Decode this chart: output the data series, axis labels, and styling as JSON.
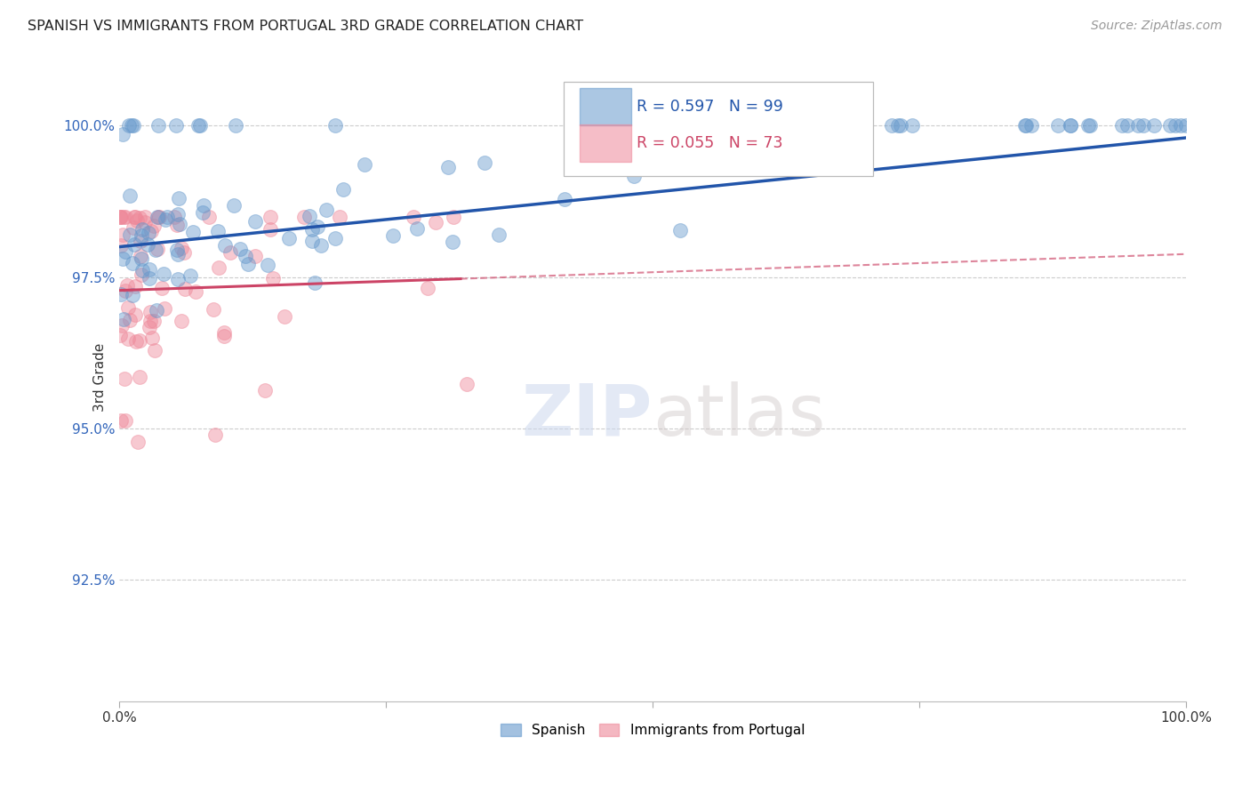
{
  "title": "SPANISH VS IMMIGRANTS FROM PORTUGAL 3RD GRADE CORRELATION CHART",
  "source": "Source: ZipAtlas.com",
  "ylabel": "3rd Grade",
  "ytick_labels": [
    "92.5%",
    "95.0%",
    "97.5%",
    "100.0%"
  ],
  "ytick_values": [
    92.5,
    95.0,
    97.5,
    100.0
  ],
  "xlim": [
    0.0,
    100.0
  ],
  "ylim": [
    90.5,
    101.2
  ],
  "blue_R": 0.597,
  "blue_N": 99,
  "pink_R": 0.055,
  "pink_N": 73,
  "blue_color": "#6699cc",
  "pink_color": "#ee8899",
  "blue_trend_color": "#2255aa",
  "pink_trend_color": "#cc4466",
  "background_color": "#ffffff",
  "blue_slope": 0.018,
  "blue_intercept": 98.0,
  "pink_slope": 0.006,
  "pink_intercept": 97.28,
  "pink_solid_end": 32.0
}
